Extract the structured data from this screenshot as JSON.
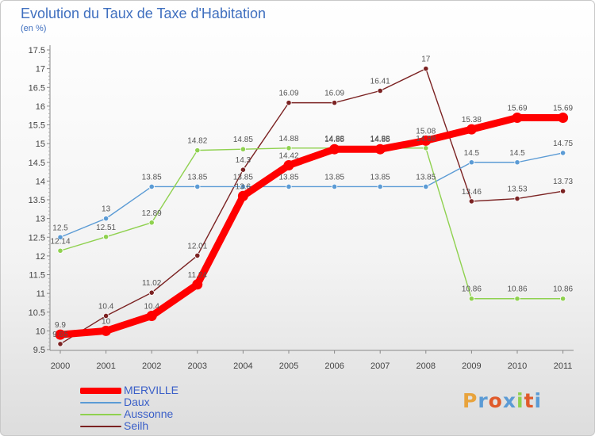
{
  "chart_data": {
    "type": "line",
    "title": "Evolution du Taux de Taxe d'Habitation",
    "subtitle": "(en %)",
    "categories": [
      "2000",
      "2001",
      "2002",
      "2003",
      "2004",
      "2005",
      "2006",
      "2007",
      "2008",
      "2009",
      "2010",
      "2011"
    ],
    "ylim": [
      9.5,
      17.5
    ],
    "y_ticks": [
      "9.5",
      "10",
      "10.5",
      "11",
      "11.5",
      "12",
      "12.5",
      "13",
      "13.5",
      "14",
      "14.5",
      "15",
      "15.5",
      "16",
      "16.5",
      "17",
      "17.5"
    ],
    "legend_position": "bottom-left",
    "grid": false,
    "series": [
      {
        "name": "MERVILLE",
        "color": "#ff0000",
        "values": [
          9.9,
          10,
          10.4,
          11.24,
          13.6,
          14.42,
          14.85,
          14.85,
          15.08,
          15.38,
          15.69,
          15.69
        ],
        "labels": [
          "9.9",
          "10",
          "10.4",
          "11.24",
          "13.6",
          "14.42",
          "14.85",
          "14.85",
          "15.08",
          "15.38",
          "15.69",
          "15.69"
        ]
      },
      {
        "name": "Daux",
        "color": "#5b9bd5",
        "values": [
          12.5,
          13,
          13.85,
          13.85,
          13.85,
          13.85,
          13.85,
          13.85,
          13.85,
          14.5,
          14.5,
          14.75
        ],
        "labels": [
          "12.5",
          "13",
          "13.85",
          "13.85",
          "13.85",
          "13.85",
          "13.85",
          "13.85",
          "13.85",
          "14.5",
          "14.5",
          "14.75"
        ]
      },
      {
        "name": "Aussonne",
        "color": "#8fd14f",
        "values": [
          12.14,
          12.51,
          12.89,
          14.82,
          14.85,
          14.88,
          14.88,
          14.88,
          14.88,
          10.86,
          10.86,
          10.86
        ],
        "labels": [
          "12.14",
          "12.51",
          "12.89",
          "14.82",
          "14.85",
          "14.88",
          "14.88",
          "14.88",
          "14.88",
          "10.86",
          "10.86",
          "10.86"
        ]
      },
      {
        "name": "Seilh",
        "color": "#7b2222",
        "values": [
          9.65,
          10.4,
          11.02,
          12.01,
          14.3,
          16.09,
          16.09,
          16.41,
          17,
          13.46,
          13.53,
          13.73
        ],
        "labels": [
          "9.65",
          "10.4",
          "11.02",
          "12.01",
          "14.3",
          "16.09",
          "16.09",
          "16.41",
          "17",
          "13.46",
          "13.53",
          "13.73"
        ]
      }
    ]
  },
  "logo_text": "Proxiti",
  "logo_colors": [
    "#e8a33c",
    "#5b9bd5",
    "#e05a2a",
    "#5b9bd5",
    "#8fd14f",
    "#e05a2a",
    "#5b9bd5"
  ]
}
